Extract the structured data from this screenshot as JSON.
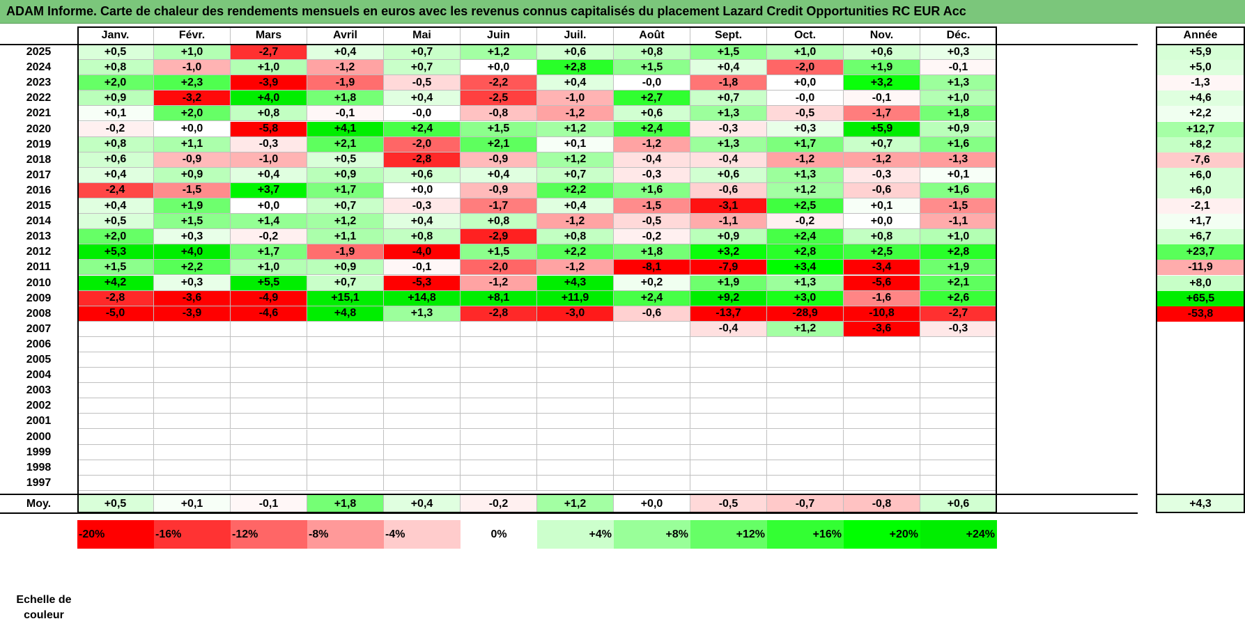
{
  "title": "ADAM Informe. Carte de chaleur des rendements mensuels en euros avec les revenus connus capitalisés du placement Lazard Credit Opportunities RC EUR Acc",
  "chart_data": {
    "type": "heatmap",
    "columns": [
      "Janv.",
      "Févr.",
      "Mars",
      "Avril",
      "Mai",
      "Juin",
      "Juil.",
      "Août",
      "Sept.",
      "Oct.",
      "Nov.",
      "Déc."
    ],
    "year_column_label": "Année",
    "rows": [
      {
        "year": "2025",
        "months": [
          "+0,5",
          "+1,0",
          "-2,7",
          "+0,4",
          "+0,7",
          "+1,2",
          "+0,6",
          "+0,8",
          "+1,5",
          "+1,0",
          "+0,6",
          "+0,3"
        ],
        "annual": "+5,9"
      },
      {
        "year": "2024",
        "months": [
          "+0,8",
          "-1,0",
          "+1,0",
          "-1,2",
          "+0,7",
          "+0,0",
          "+2,8",
          "+1,5",
          "+0,4",
          "-2,0",
          "+1,9",
          "-0,1"
        ],
        "annual": "+5,0"
      },
      {
        "year": "2023",
        "months": [
          "+2,0",
          "+2,3",
          "-3,9",
          "-1,9",
          "-0,5",
          "-2,2",
          "+0,4",
          "-0,0",
          "-1,8",
          "+0,0",
          "+3,2",
          "+1,3"
        ],
        "annual": "-1,3"
      },
      {
        "year": "2022",
        "months": [
          "+0,9",
          "-3,2",
          "+4,0",
          "+1,8",
          "+0,4",
          "-2,5",
          "-1,0",
          "+2,7",
          "+0,7",
          "-0,0",
          "-0,1",
          "+1,0"
        ],
        "annual": "+4,6"
      },
      {
        "year": "2021",
        "months": [
          "+0,1",
          "+2,0",
          "+0,8",
          "-0,1",
          "-0,0",
          "-0,8",
          "-1,2",
          "+0,6",
          "+1,3",
          "-0,5",
          "-1,7",
          "+1,8"
        ],
        "annual": "+2,2"
      },
      {
        "year": "2020",
        "months": [
          "-0,2",
          "+0,0",
          "-5,8",
          "+4,1",
          "+2,4",
          "+1,5",
          "+1,2",
          "+2,4",
          "-0,3",
          "+0,3",
          "+5,9",
          "+0,9"
        ],
        "annual": "+12,7"
      },
      {
        "year": "2019",
        "months": [
          "+0,8",
          "+1,1",
          "-0,3",
          "+2,1",
          "-2,0",
          "+2,1",
          "+0,1",
          "-1,2",
          "+1,3",
          "+1,7",
          "+0,7",
          "+1,6"
        ],
        "annual": "+8,2"
      },
      {
        "year": "2018",
        "months": [
          "+0,6",
          "-0,9",
          "-1,0",
          "+0,5",
          "-2,8",
          "-0,9",
          "+1,2",
          "-0,4",
          "-0,4",
          "-1,2",
          "-1,2",
          "-1,3"
        ],
        "annual": "-7,6"
      },
      {
        "year": "2017",
        "months": [
          "+0,4",
          "+0,9",
          "+0,4",
          "+0,9",
          "+0,6",
          "+0,4",
          "+0,7",
          "-0,3",
          "+0,6",
          "+1,3",
          "-0,3",
          "+0,1"
        ],
        "annual": "+6,0"
      },
      {
        "year": "2016",
        "months": [
          "-2,4",
          "-1,5",
          "+3,7",
          "+1,7",
          "+0,0",
          "-0,9",
          "+2,2",
          "+1,6",
          "-0,6",
          "+1,2",
          "-0,6",
          "+1,6"
        ],
        "annual": "+6,0"
      },
      {
        "year": "2015",
        "months": [
          "+0,4",
          "+1,9",
          "+0,0",
          "+0,7",
          "-0,3",
          "-1,7",
          "+0,4",
          "-1,5",
          "-3,1",
          "+2,5",
          "+0,1",
          "-1,5"
        ],
        "annual": "-2,1"
      },
      {
        "year": "2014",
        "months": [
          "+0,5",
          "+1,5",
          "+1,4",
          "+1,2",
          "+0,4",
          "+0,8",
          "-1,2",
          "-0,5",
          "-1,1",
          "-0,2",
          "+0,0",
          "-1,1"
        ],
        "annual": "+1,7"
      },
      {
        "year": "2013",
        "months": [
          "+2,0",
          "+0,3",
          "-0,2",
          "+1,1",
          "+0,8",
          "-2,9",
          "+0,8",
          "-0,2",
          "+0,9",
          "+2,4",
          "+0,8",
          "+1,0"
        ],
        "annual": "+6,7"
      },
      {
        "year": "2012",
        "months": [
          "+5,3",
          "+4,0",
          "+1,7",
          "-1,9",
          "-4,0",
          "+1,5",
          "+2,2",
          "+1,8",
          "+3,2",
          "+2,8",
          "+2,5",
          "+2,8"
        ],
        "annual": "+23,7"
      },
      {
        "year": "2011",
        "months": [
          "+1,5",
          "+2,2",
          "+1,0",
          "+0,9",
          "-0,1",
          "-2,0",
          "-1,2",
          "-8,1",
          "-7,9",
          "+3,4",
          "-3,4",
          "+1,9"
        ],
        "annual": "-11,9"
      },
      {
        "year": "2010",
        "months": [
          "+4,2",
          "+0,3",
          "+5,5",
          "+0,7",
          "-5,3",
          "-1,2",
          "+4,3",
          "+0,2",
          "+1,9",
          "+1,3",
          "-5,6",
          "+2,1"
        ],
        "annual": "+8,0"
      },
      {
        "year": "2009",
        "months": [
          "-2,8",
          "-3,6",
          "-4,9",
          "+15,1",
          "+14,8",
          "+8,1",
          "+11,9",
          "+2,4",
          "+9,2",
          "+3,0",
          "-1,6",
          "+2,6"
        ],
        "annual": "+65,5"
      },
      {
        "year": "2008",
        "months": [
          "-5,0",
          "-3,9",
          "-4,6",
          "+4,8",
          "+1,3",
          "-2,8",
          "-3,0",
          "-0,6",
          "-13,7",
          "-28,9",
          "-10,8",
          "-2,7"
        ],
        "annual": "-53,8"
      },
      {
        "year": "2007",
        "months": [
          "",
          "",
          "",
          "",
          "",
          "",
          "",
          "",
          "-0,4",
          "+1,2",
          "-3,6",
          "-0,3"
        ],
        "annual": ""
      },
      {
        "year": "2006",
        "months": [
          "",
          "",
          "",
          "",
          "",
          "",
          "",
          "",
          "",
          "",
          "",
          ""
        ],
        "annual": ""
      },
      {
        "year": "2005",
        "months": [
          "",
          "",
          "",
          "",
          "",
          "",
          "",
          "",
          "",
          "",
          "",
          ""
        ],
        "annual": ""
      },
      {
        "year": "2004",
        "months": [
          "",
          "",
          "",
          "",
          "",
          "",
          "",
          "",
          "",
          "",
          "",
          ""
        ],
        "annual": ""
      },
      {
        "year": "2003",
        "months": [
          "",
          "",
          "",
          "",
          "",
          "",
          "",
          "",
          "",
          "",
          "",
          ""
        ],
        "annual": ""
      },
      {
        "year": "2002",
        "months": [
          "",
          "",
          "",
          "",
          "",
          "",
          "",
          "",
          "",
          "",
          "",
          ""
        ],
        "annual": ""
      },
      {
        "year": "2001",
        "months": [
          "",
          "",
          "",
          "",
          "",
          "",
          "",
          "",
          "",
          "",
          "",
          ""
        ],
        "annual": ""
      },
      {
        "year": "2000",
        "months": [
          "",
          "",
          "",
          "",
          "",
          "",
          "",
          "",
          "",
          "",
          "",
          ""
        ],
        "annual": ""
      },
      {
        "year": "1999",
        "months": [
          "",
          "",
          "",
          "",
          "",
          "",
          "",
          "",
          "",
          "",
          "",
          ""
        ],
        "annual": ""
      },
      {
        "year": "1998",
        "months": [
          "",
          "",
          "",
          "",
          "",
          "",
          "",
          "",
          "",
          "",
          "",
          ""
        ],
        "annual": ""
      },
      {
        "year": "1997",
        "months": [
          "",
          "",
          "",
          "",
          "",
          "",
          "",
          "",
          "",
          "",
          "",
          ""
        ],
        "annual": ""
      }
    ],
    "average_row": {
      "label": "Moy.",
      "months": [
        "+0,5",
        "+0,1",
        "-0,1",
        "+1,8",
        "+0,4",
        "-0,2",
        "+1,2",
        "+0,0",
        "-0,5",
        "-0,7",
        "-0,8",
        "+0,6"
      ],
      "annual": "+4,3"
    },
    "color_scale": {
      "label": "Echelle de couleur",
      "stops": [
        {
          "label": "-20%",
          "value": -20,
          "color": "#ff0000"
        },
        {
          "label": "-16%",
          "value": -16,
          "color": "#ff3333"
        },
        {
          "label": "-12%",
          "value": -12,
          "color": "#ff6666"
        },
        {
          "label": "-8%",
          "value": -8,
          "color": "#ff9999"
        },
        {
          "label": "-4%",
          "value": -4,
          "color": "#ffcccc"
        },
        {
          "label": "0%",
          "value": 0,
          "color": "#ffffff"
        },
        {
          "label": "+4%",
          "value": 4,
          "color": "#ccffcc"
        },
        {
          "label": "+8%",
          "value": 8,
          "color": "#99ff99"
        },
        {
          "label": "+12%",
          "value": 12,
          "color": "#66ff66"
        },
        {
          "label": "+16%",
          "value": 16,
          "color": "#33ff33"
        },
        {
          "label": "+20%",
          "value": 20,
          "color": "#00ff00"
        },
        {
          "label": "+24%",
          "value": 24,
          "color": "#00ee00"
        }
      ]
    }
  }
}
